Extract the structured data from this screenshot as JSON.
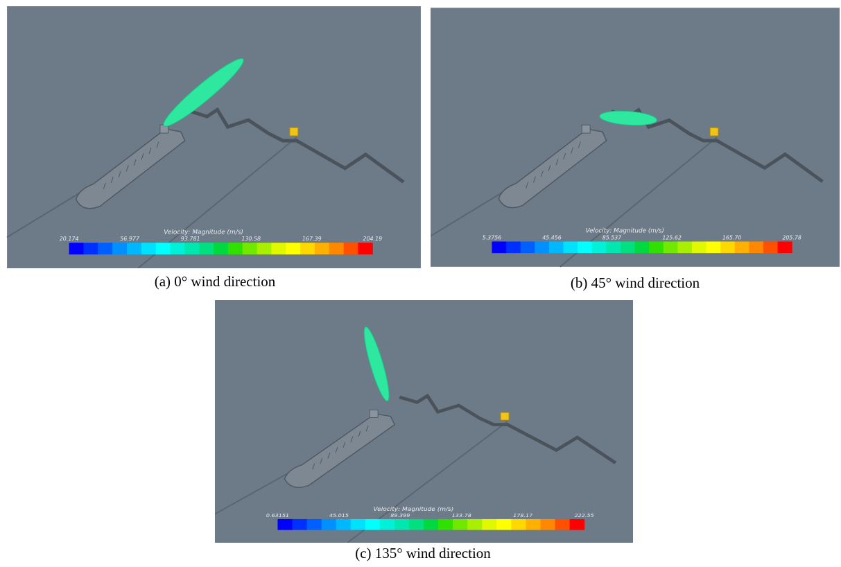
{
  "panels": [
    {
      "caption": "(a) 0° wind direction",
      "colorbar": {
        "title": "Velocity: Magnitude (m/s)",
        "ticks": [
          "20.174",
          "56.977",
          "93.781",
          "130.58",
          "167.39",
          "204.19"
        ]
      }
    },
    {
      "caption": "(b) 45° wind direction",
      "colorbar": {
        "title": "Velocity: Magnitude (m/s)",
        "ticks": [
          "5.3756",
          "45.456",
          "85.537",
          "125.62",
          "165.70",
          "205.78"
        ]
      }
    },
    {
      "caption": "(c) 135° wind direction",
      "colorbar": {
        "title": "Velocity: Magnitude (m/s)",
        "ticks": [
          "0.63151",
          "45.015",
          "89.399",
          "133.78",
          "178.17",
          "222.55"
        ]
      }
    }
  ]
}
